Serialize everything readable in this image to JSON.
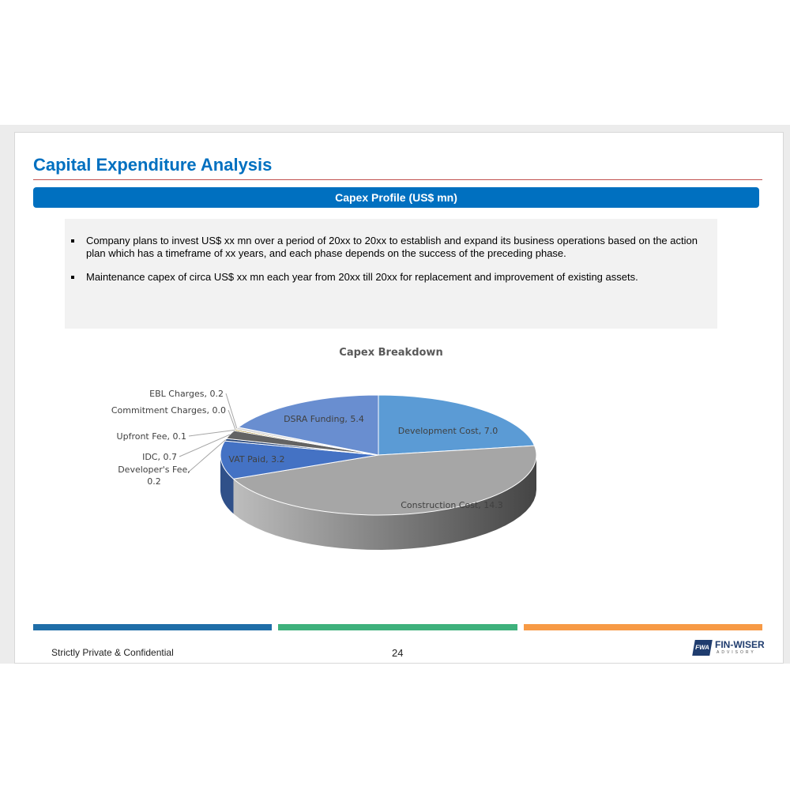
{
  "header": {
    "title": "Capital Expenditure Analysis",
    "banner": "Capex Profile (US$ mn)"
  },
  "bullets": [
    "Company plans to invest US$ xx mn over a period of 20xx to 20xx to establish and expand its business operations based on  the action plan which has a timeframe of xx years, and each phase depends on the success of the preceding phase.",
    "Maintenance capex of circa US$ xx mn each year from 20xx till 20xx for replacement and improvement of existing assets."
  ],
  "footer": {
    "confidential": "Strictly Private & Confidential",
    "page": "24",
    "logo": "FIN-WISER",
    "logo_sub": "ADVISORY",
    "logo_mark": "FWA"
  },
  "chart_data": {
    "type": "pie",
    "title": "Capex Breakdown",
    "categories": [
      "Development Cost",
      "Construction Cost",
      "VAT Paid",
      "Developer's Fee",
      "IDC",
      "Upfront Fee",
      "Commitment Charges",
      "EBL Charges",
      "DSRA Funding"
    ],
    "values": [
      7.0,
      14.3,
      3.2,
      0.2,
      0.7,
      0.1,
      0.0,
      0.2,
      5.4
    ],
    "value_labels": [
      "7.0",
      "14.3",
      "3.2",
      "0.2",
      "0.7",
      "0.1",
      "0.0",
      "0.2",
      "5.4"
    ],
    "colors": [
      "#5b9bd5",
      "#a5a5a5",
      "#4472c4",
      "#264478",
      "#636363",
      "#997300",
      "#7f7f7f",
      "#d9d9d9",
      "#698ed0"
    ]
  }
}
